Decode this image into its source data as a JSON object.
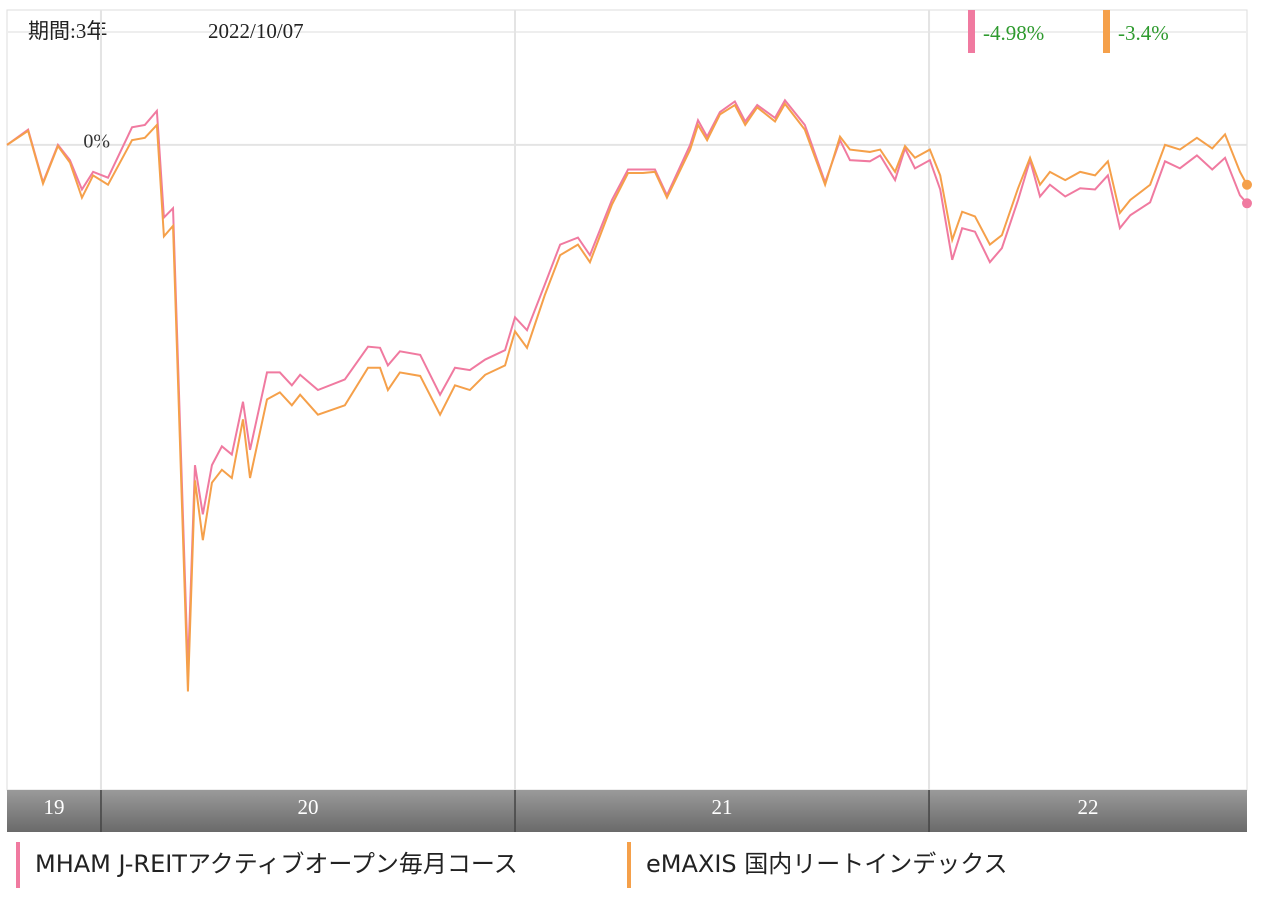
{
  "chart_data": {
    "type": "line",
    "period": "期間:3年",
    "date": "2022/10/07",
    "xlim": [
      2019.773,
      2022.768
    ],
    "xticks": [
      {
        "value": 2019.773,
        "label": "19"
      },
      {
        "value": 2020,
        "label": "20"
      },
      {
        "value": 2021,
        "label": "21"
      },
      {
        "value": 2022,
        "label": "22"
      }
    ],
    "ylim": [
      -55,
      11.5
    ],
    "yticks": [
      {
        "value": 0,
        "label": "0%"
      }
    ],
    "grid": true,
    "x": [
      2019.773,
      2019.824,
      2019.86,
      2019.896,
      2019.925,
      2019.954,
      2019.981,
      2020.017,
      2020.075,
      2020.106,
      2020.135,
      2020.152,
      2020.174,
      2020.21,
      2020.227,
      2020.246,
      2020.268,
      2020.292,
      2020.316,
      2020.343,
      2020.36,
      2020.401,
      2020.432,
      2020.461,
      2020.481,
      2020.524,
      2020.589,
      2020.645,
      2020.674,
      2020.693,
      2020.722,
      2020.771,
      2020.819,
      2020.855,
      2020.891,
      2020.928,
      2020.976,
      2021.0,
      2021.029,
      2021.072,
      2021.109,
      2021.152,
      2021.181,
      2021.234,
      2021.273,
      2021.309,
      2021.338,
      2021.367,
      2021.423,
      2021.442,
      2021.464,
      2021.495,
      2021.531,
      2021.556,
      2021.585,
      2021.628,
      2021.652,
      2021.7,
      2021.749,
      2021.785,
      2021.809,
      2021.857,
      2021.882,
      2021.918,
      2021.942,
      2021.966,
      2022.002,
      2022.027,
      2022.056,
      2022.08,
      2022.111,
      2022.147,
      2022.176,
      2022.215,
      2022.244,
      2022.268,
      2022.292,
      2022.329,
      2022.365,
      2022.401,
      2022.432,
      2022.461,
      2022.486,
      2022.534,
      2022.57,
      2022.606,
      2022.647,
      2022.684,
      2022.715,
      2022.751,
      2022.768
    ],
    "series": [
      {
        "name": "MHAM J-REITアクティブオープン毎月コース",
        "color": "#f07aa0",
        "end_label": "-4.98%",
        "values": [
          0,
          1.3,
          -3.2,
          0,
          -1.3,
          -3.8,
          -2.3,
          -2.8,
          1.5,
          1.7,
          2.9,
          -6.2,
          -5.4,
          -44.8,
          -27.3,
          -31.5,
          -27.3,
          -25.7,
          -26.4,
          -21.9,
          -26.0,
          -19.4,
          -19.4,
          -20.5,
          -19.6,
          -20.9,
          -20.0,
          -17.2,
          -17.3,
          -18.8,
          -17.6,
          -17.9,
          -21.3,
          -19.0,
          -19.2,
          -18.3,
          -17.5,
          -14.7,
          -15.8,
          -11.9,
          -8.5,
          -7.9,
          -9.4,
          -4.7,
          -2.1,
          -2.1,
          -2.1,
          -4.3,
          0,
          2.1,
          0.7,
          2.8,
          3.7,
          2.0,
          3.4,
          2.3,
          3.8,
          1.7,
          -3.2,
          0.4,
          -1.3,
          -1.4,
          -0.9,
          -3.0,
          -0.3,
          -2.0,
          -1.3,
          -3.8,
          -9.8,
          -7.1,
          -7.4,
          -10.0,
          -8.8,
          -4.7,
          -1.3,
          -4.4,
          -3.4,
          -4.4,
          -3.7,
          -3.8,
          -2.6,
          -7.1,
          -6.0,
          -4.9,
          -1.4,
          -2.0,
          -0.9,
          -2.1,
          -1.1,
          -4.3,
          -4.98
        ]
      },
      {
        "name": "eMAXIS 国内リートインデックス",
        "color": "#f5a04a",
        "end_label": "-3.4%",
        "values": [
          0,
          1.2,
          -3.3,
          -0.1,
          -1.5,
          -4.5,
          -2.6,
          -3.4,
          0.4,
          0.6,
          1.7,
          -7.8,
          -6.9,
          -46.6,
          -28.6,
          -33.7,
          -28.8,
          -27.7,
          -28.4,
          -23.4,
          -28.4,
          -21.7,
          -21.1,
          -22.2,
          -21.3,
          -23.0,
          -22.2,
          -19.0,
          -19.0,
          -20.9,
          -19.4,
          -19.7,
          -23.0,
          -20.5,
          -20.9,
          -19.6,
          -18.8,
          -15.9,
          -17.3,
          -12.8,
          -9.4,
          -8.5,
          -10.0,
          -5.1,
          -2.4,
          -2.4,
          -2.3,
          -4.5,
          -0.4,
          1.7,
          0.4,
          2.6,
          3.4,
          1.7,
          3.2,
          2.0,
          3.5,
          1.3,
          -3.4,
          0.7,
          -0.4,
          -0.6,
          -0.4,
          -2.3,
          -0.1,
          -1.1,
          -0.4,
          -2.6,
          -8.1,
          -5.7,
          -6.1,
          -8.5,
          -7.7,
          -3.7,
          -1.1,
          -3.4,
          -2.3,
          -3.0,
          -2.3,
          -2.6,
          -1.4,
          -5.8,
          -4.7,
          -3.4,
          0.0,
          -0.4,
          0.6,
          -0.3,
          0.9,
          -2.3,
          -3.4
        ]
      }
    ]
  }
}
